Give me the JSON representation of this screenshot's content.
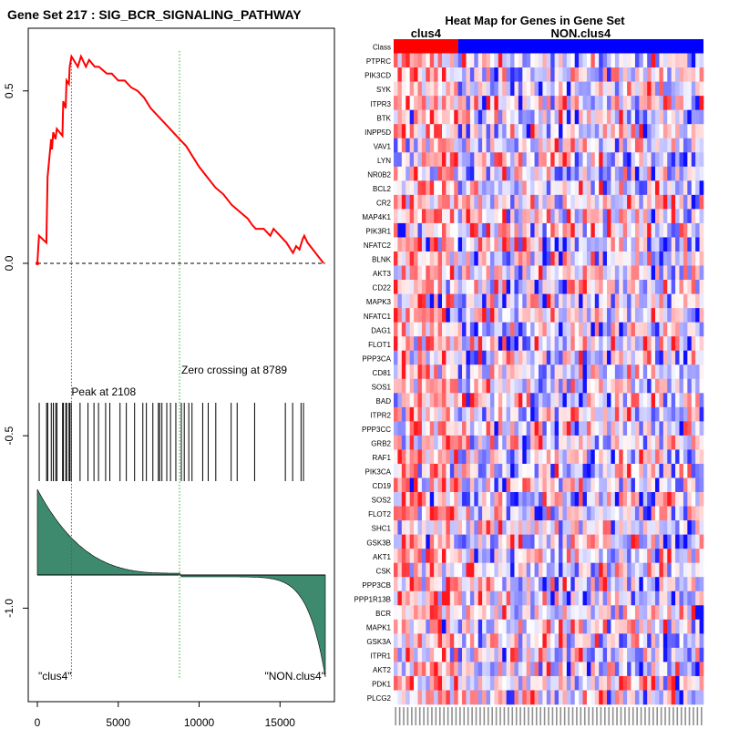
{
  "chart_data": [
    {
      "type": "line",
      "title": "Gene Set  217 : SIG_BCR_SIGNALING_PATHWAY",
      "xlim": [
        0,
        17800
      ],
      "ylim": [
        -1.25,
        0.65
      ],
      "x_ticks": [
        0,
        5000,
        10000,
        15000
      ],
      "x_tick_labels": [
        "0",
        "5000",
        "10000",
        "15000"
      ],
      "y_ticks": [
        0.5,
        0.0,
        -0.5,
        -1.0
      ],
      "y_tick_labels": [
        "0.5",
        "0.0",
        "-0.5",
        "-1.0"
      ],
      "es_color": "#ff0000",
      "peak": {
        "x": 2108,
        "label": "Peak at 2108",
        "color": "#dd2222"
      },
      "zero_crossing": {
        "x": 8789,
        "label": "Zero crossing at 8789",
        "color": "#22bb22"
      },
      "running_es": {
        "x": [
          0,
          100,
          560,
          630,
          850,
          900,
          980,
          1120,
          1200,
          1550,
          1600,
          1750,
          1800,
          1950,
          2000,
          2108,
          2500,
          2700,
          3000,
          3200,
          3550,
          3800,
          4300,
          4600,
          5000,
          5400,
          5800,
          6200,
          6600,
          7000,
          7400,
          7800,
          8200,
          8789,
          9200,
          9600,
          10000,
          10500,
          11000,
          11500,
          12000,
          12500,
          13000,
          13300,
          13500,
          13800,
          14000,
          14400,
          14600,
          15000,
          15400,
          15800,
          16000,
          16200,
          16400,
          16500,
          16700,
          17200,
          17700
        ],
        "y": [
          0.0,
          0.08,
          0.06,
          0.25,
          0.36,
          0.33,
          0.38,
          0.36,
          0.39,
          0.37,
          0.47,
          0.45,
          0.53,
          0.52,
          0.57,
          0.6,
          0.57,
          0.6,
          0.57,
          0.59,
          0.57,
          0.57,
          0.55,
          0.55,
          0.53,
          0.53,
          0.51,
          0.5,
          0.48,
          0.45,
          0.43,
          0.41,
          0.39,
          0.36,
          0.34,
          0.31,
          0.28,
          0.25,
          0.22,
          0.2,
          0.17,
          0.15,
          0.13,
          0.11,
          0.1,
          0.1,
          0.1,
          0.08,
          0.1,
          0.08,
          0.06,
          0.03,
          0.05,
          0.04,
          0.07,
          0.08,
          0.06,
          0.03,
          0.0
        ]
      },
      "hit_positions": [
        114,
        570,
        640,
        860,
        985,
        1130,
        1210,
        1560,
        1610,
        1760,
        1810,
        1960,
        2010,
        2100,
        2640,
        3130,
        3500,
        3780,
        4220,
        4480,
        5110,
        5500,
        6010,
        6520,
        6740,
        7140,
        7480,
        7560,
        7700,
        8000,
        8230,
        8560,
        8900,
        9080,
        9360,
        9560,
        10220,
        10560,
        11030,
        11980,
        12350,
        13430,
        15330,
        15780,
        16300,
        16450
      ],
      "ranked_metric_color": "#3d8a6e",
      "class_labels": [
        "\"clus4\"",
        "\"NON.clus4\""
      ]
    },
    {
      "type": "heatmap",
      "title": "Heat Map for Genes in Gene Set",
      "class_row_label": "Class",
      "groups": [
        {
          "name": "clus4",
          "color": "#ff0000",
          "columns": 16
        },
        {
          "name": "NON.clus4",
          "color": "#0000ff",
          "columns": 61
        }
      ],
      "genes": [
        "PTPRC",
        "PIK3CD",
        "SYK",
        "ITPR3",
        "BTK",
        "INPP5D",
        "VAV1",
        "LYN",
        "NR0B2",
        "BCL2",
        "CR2",
        "MAP4K1",
        "PIK3R1",
        "NFATC2",
        "BLNK",
        "AKT3",
        "CD22",
        "MAPK3",
        "NFATC1",
        "DAG1",
        "FLOT1",
        "PPP3CA",
        "CD81",
        "SOS1",
        "BAD",
        "ITPR2",
        "PPP3CC",
        "GRB2",
        "RAF1",
        "PIK3CA",
        "CD19",
        "SOS2",
        "FLOT2",
        "SHC1",
        "GSK3B",
        "AKT1",
        "CSK",
        "PPP3CB",
        "PPP1R13B",
        "BCR",
        "MAPK1",
        "GSK3A",
        "ITPR1",
        "AKT2",
        "PDK1",
        "PLCG2"
      ]
    }
  ]
}
